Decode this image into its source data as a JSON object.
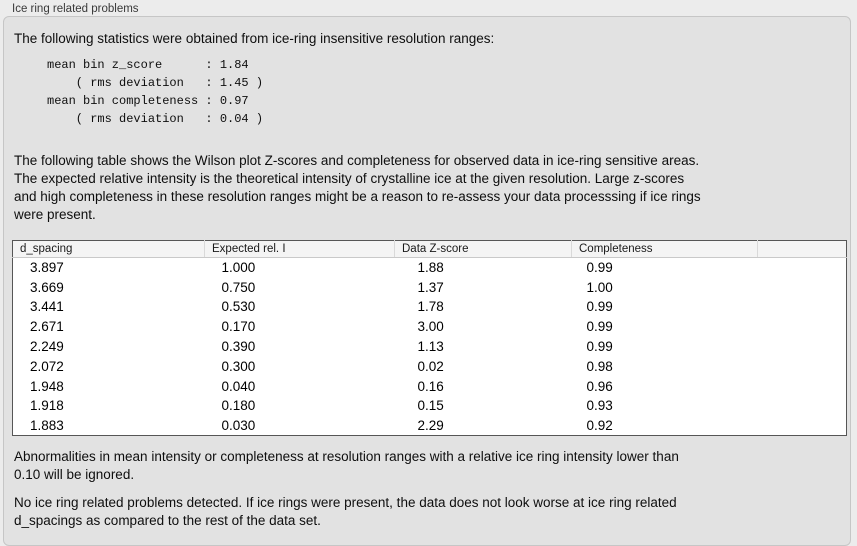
{
  "panel": {
    "title": "Ice ring related problems",
    "intro_text": "The following statistics were obtained from ice-ring insensitive resolution ranges:",
    "stats_block": "mean bin z_score      : 1.84\n    ( rms deviation   : 1.45 )\nmean bin completeness : 0.97\n    ( rms deviation   : 0.04 )",
    "stats": {
      "mean_bin_z_score": "1.84",
      "z_score_rms_deviation": "1.45",
      "mean_bin_completeness": "0.97",
      "completeness_rms_deviation": "0.04"
    },
    "table_description": "The following table shows the Wilson plot Z-scores and completeness for observed data in ice-ring sensitive areas.\nThe expected relative intensity is the theoretical intensity of crystalline ice at the given resolution. Large z-scores\nand high completeness in these resolution ranges might be a reason to re-assess your data processsing if ice rings\nwere present.",
    "ignore_note": "Abnormalities in mean intensity or completeness at resolution ranges with a relative ice ring intensity lower than\n0.10 will be ignored.",
    "conclusion": "No ice ring related problems detected. If ice rings were present, the data does not look worse at ice ring related\nd_spacings as compared to the rest of the data set."
  },
  "table": {
    "columns": [
      "d_spacing",
      "Expected rel. I",
      "Data Z-score",
      "Completeness",
      ""
    ],
    "rows": [
      [
        "3.897",
        "1.000",
        "1.88",
        "0.99"
      ],
      [
        "3.669",
        "0.750",
        "1.37",
        "1.00"
      ],
      [
        "3.441",
        "0.530",
        "1.78",
        "0.99"
      ],
      [
        "2.671",
        "0.170",
        "3.00",
        "0.99"
      ],
      [
        "2.249",
        "0.390",
        "1.13",
        "0.99"
      ],
      [
        "2.072",
        "0.300",
        "0.02",
        "0.98"
      ],
      [
        "1.948",
        "0.040",
        "0.16",
        "0.96"
      ],
      [
        "1.918",
        "0.180",
        "0.15",
        "0.93"
      ],
      [
        "1.883",
        "0.030",
        "2.29",
        "0.92"
      ]
    ]
  },
  "colors": {
    "page_bg": "#ececec",
    "panel_bg": "#e2e2e2",
    "panel_border": "#c6c6c6",
    "table_border": "#565656",
    "table_header_bg": "#f4f4f4",
    "text": "#0e0e0e"
  }
}
